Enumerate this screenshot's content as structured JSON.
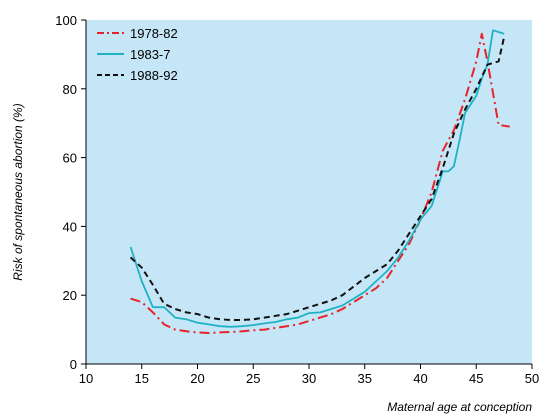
{
  "chart_data": {
    "type": "line",
    "title": "",
    "xlabel": "Maternal age at conception",
    "ylabel": "Risk of spontaneous abortion (%)",
    "xlim": [
      10,
      50
    ],
    "ylim": [
      0,
      100
    ],
    "xticks": [
      10,
      15,
      20,
      25,
      30,
      35,
      40,
      45,
      50
    ],
    "yticks": [
      0,
      20,
      40,
      60,
      80,
      100
    ],
    "grid": false,
    "legend_position": "top-left",
    "background_color": "#c5e6f7",
    "series": [
      {
        "name": "1978-82",
        "color": "#e8232a",
        "dash": "dash-dot",
        "x": [
          14,
          15,
          16,
          17,
          18,
          19,
          20,
          21,
          22,
          23,
          24,
          25,
          26,
          27,
          28,
          29,
          30,
          31,
          32,
          33,
          34,
          35,
          36,
          37,
          38,
          39,
          40,
          41,
          42,
          43,
          44,
          45,
          45.5,
          46,
          47,
          48
        ],
        "y": [
          19,
          18,
          15,
          11.5,
          10,
          9.5,
          9.2,
          9,
          9.2,
          9.3,
          9.5,
          9.8,
          10,
          10.5,
          11,
          11.5,
          12.5,
          13.5,
          14.5,
          16,
          18,
          20,
          22,
          25,
          30,
          35,
          42,
          50,
          62,
          68,
          77,
          88,
          96,
          88,
          69.5,
          69
        ]
      },
      {
        "name": "1983-7",
        "color": "#1fb2c4",
        "dash": "solid",
        "x": [
          14,
          15,
          16,
          17,
          18,
          19,
          20,
          21,
          22,
          23,
          24,
          25,
          26,
          27,
          28,
          29,
          30,
          31,
          32,
          33,
          34,
          35,
          36,
          37,
          38,
          39,
          40,
          41,
          42,
          42.5,
          43,
          43.5,
          44,
          45,
          45.5,
          46,
          46.5,
          47,
          47.5
        ],
        "y": [
          34,
          24,
          16.5,
          16.5,
          13.5,
          13,
          12,
          11.5,
          11,
          10.8,
          11,
          11.3,
          11.8,
          12.2,
          13,
          13.5,
          14.8,
          15,
          16,
          17,
          19,
          21,
          24,
          27,
          31,
          36,
          42,
          46,
          56,
          56,
          57.5,
          65,
          73,
          78,
          83,
          87,
          97,
          96.5,
          96
        ]
      },
      {
        "name": "1988-92",
        "color": "#111111",
        "dash": "dashed",
        "x": [
          14,
          15,
          16,
          17,
          18,
          19,
          20,
          21,
          22,
          23,
          24,
          25,
          26,
          27,
          28,
          29,
          30,
          31,
          32,
          33,
          34,
          35,
          36,
          37,
          38,
          39,
          40,
          41,
          42,
          43,
          44,
          45,
          46,
          47,
          47.5
        ],
        "y": [
          31,
          28,
          23,
          17.5,
          16,
          15,
          14.5,
          13.5,
          13,
          12.8,
          12.8,
          13,
          13.5,
          14,
          14.5,
          15.5,
          16.5,
          17.5,
          18.5,
          20,
          22.5,
          25,
          27,
          29,
          33,
          38,
          43,
          48,
          57,
          67,
          74,
          80,
          87,
          88,
          95
        ]
      }
    ]
  }
}
